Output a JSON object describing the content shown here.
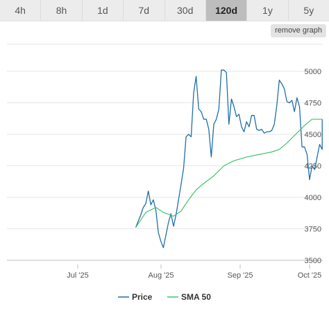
{
  "tabs": [
    {
      "label": "4h",
      "active": false
    },
    {
      "label": "8h",
      "active": false
    },
    {
      "label": "1d",
      "active": false
    },
    {
      "label": "7d",
      "active": false
    },
    {
      "label": "30d",
      "active": false
    },
    {
      "label": "120d",
      "active": true
    },
    {
      "label": "1y",
      "active": false
    },
    {
      "label": "5y",
      "active": false
    }
  ],
  "remove_graph_label": "remove graph",
  "chart_data": {
    "type": "line",
    "x_ticks": [
      "Jul '25",
      "Aug '25",
      "Sep '25",
      "Oct '25"
    ],
    "y_ticks": [
      3500,
      3750,
      4000,
      4250,
      4500,
      4750,
      5000
    ],
    "ylim": [
      3500,
      5000
    ],
    "xlim": [
      "2025-06-03",
      "2025-10-03"
    ],
    "grid": "horizontal",
    "legend_position": "bottom",
    "series": [
      {
        "name": "Price",
        "color": "#1f6ea8",
        "points": [
          [
            "2025-07-24",
            3760
          ],
          [
            "2025-07-26",
            3860
          ],
          [
            "2025-07-27",
            3920
          ],
          [
            "2025-07-28",
            3950
          ],
          [
            "2025-07-29",
            4050
          ],
          [
            "2025-07-30",
            3940
          ],
          [
            "2025-07-31",
            3980
          ],
          [
            "2025-08-01",
            3900
          ],
          [
            "2025-08-02",
            3720
          ],
          [
            "2025-08-03",
            3650
          ],
          [
            "2025-08-04",
            3600
          ],
          [
            "2025-08-06",
            3800
          ],
          [
            "2025-08-07",
            3870
          ],
          [
            "2025-08-08",
            3770
          ],
          [
            "2025-08-09",
            3860
          ],
          [
            "2025-08-11",
            4100
          ],
          [
            "2025-08-12",
            4230
          ],
          [
            "2025-08-13",
            4480
          ],
          [
            "2025-08-14",
            4500
          ],
          [
            "2025-08-15",
            4480
          ],
          [
            "2025-08-16",
            4830
          ],
          [
            "2025-08-17",
            4960
          ],
          [
            "2025-08-18",
            4700
          ],
          [
            "2025-08-19",
            4680
          ],
          [
            "2025-08-20",
            4620
          ],
          [
            "2025-08-21",
            4620
          ],
          [
            "2025-08-22",
            4540
          ],
          [
            "2025-08-23",
            4320
          ],
          [
            "2025-08-24",
            4580
          ],
          [
            "2025-08-25",
            4620
          ],
          [
            "2025-08-26",
            4700
          ],
          [
            "2025-08-27",
            5010
          ],
          [
            "2025-08-28",
            5010
          ],
          [
            "2025-08-29",
            4990
          ],
          [
            "2025-08-30",
            4580
          ],
          [
            "2025-08-31",
            4780
          ],
          [
            "2025-09-01",
            4720
          ],
          [
            "2025-09-02",
            4640
          ],
          [
            "2025-09-03",
            4660
          ],
          [
            "2025-09-04",
            4560
          ],
          [
            "2025-09-05",
            4520
          ],
          [
            "2025-09-06",
            4600
          ],
          [
            "2025-09-07",
            4560
          ],
          [
            "2025-09-08",
            4650
          ],
          [
            "2025-09-09",
            4650
          ],
          [
            "2025-09-10",
            4540
          ],
          [
            "2025-09-11",
            4530
          ],
          [
            "2025-09-12",
            4540
          ],
          [
            "2025-09-13",
            4510
          ],
          [
            "2025-09-14",
            4520
          ],
          [
            "2025-09-15",
            4520
          ],
          [
            "2025-09-16",
            4530
          ],
          [
            "2025-09-17",
            4580
          ],
          [
            "2025-09-18",
            4730
          ],
          [
            "2025-09-19",
            4930
          ],
          [
            "2025-09-20",
            4900
          ],
          [
            "2025-09-21",
            4860
          ],
          [
            "2025-09-22",
            4760
          ],
          [
            "2025-09-23",
            4750
          ],
          [
            "2025-09-24",
            4770
          ],
          [
            "2025-09-25",
            4680
          ],
          [
            "2025-09-26",
            4790
          ],
          [
            "2025-09-27",
            4720
          ],
          [
            "2025-09-28",
            4400
          ],
          [
            "2025-09-29",
            4400
          ],
          [
            "2025-09-30",
            4340
          ],
          [
            "2025-10-01",
            4140
          ],
          [
            "2025-10-02",
            4250
          ],
          [
            "2025-10-03",
            4220
          ],
          [
            "2025-10-04",
            4320
          ],
          [
            "2025-10-05",
            4420
          ],
          [
            "2025-10-06",
            4380
          ],
          [
            "2025-10-06",
            4620
          ]
        ]
      },
      {
        "name": "SMA 50",
        "color": "#3dc46a",
        "points": [
          [
            "2025-07-24",
            3760
          ],
          [
            "2025-07-28",
            3880
          ],
          [
            "2025-08-01",
            3920
          ],
          [
            "2025-08-04",
            3880
          ],
          [
            "2025-08-08",
            3850
          ],
          [
            "2025-08-11",
            3890
          ],
          [
            "2025-08-14",
            3980
          ],
          [
            "2025-08-17",
            4060
          ],
          [
            "2025-08-20",
            4110
          ],
          [
            "2025-08-24",
            4170
          ],
          [
            "2025-08-28",
            4250
          ],
          [
            "2025-09-01",
            4290
          ],
          [
            "2025-09-06",
            4320
          ],
          [
            "2025-09-11",
            4340
          ],
          [
            "2025-09-16",
            4360
          ],
          [
            "2025-09-19",
            4380
          ],
          [
            "2025-09-22",
            4430
          ],
          [
            "2025-09-26",
            4510
          ],
          [
            "2025-09-29",
            4570
          ],
          [
            "2025-10-02",
            4620
          ],
          [
            "2025-10-06",
            4620
          ]
        ]
      }
    ]
  }
}
